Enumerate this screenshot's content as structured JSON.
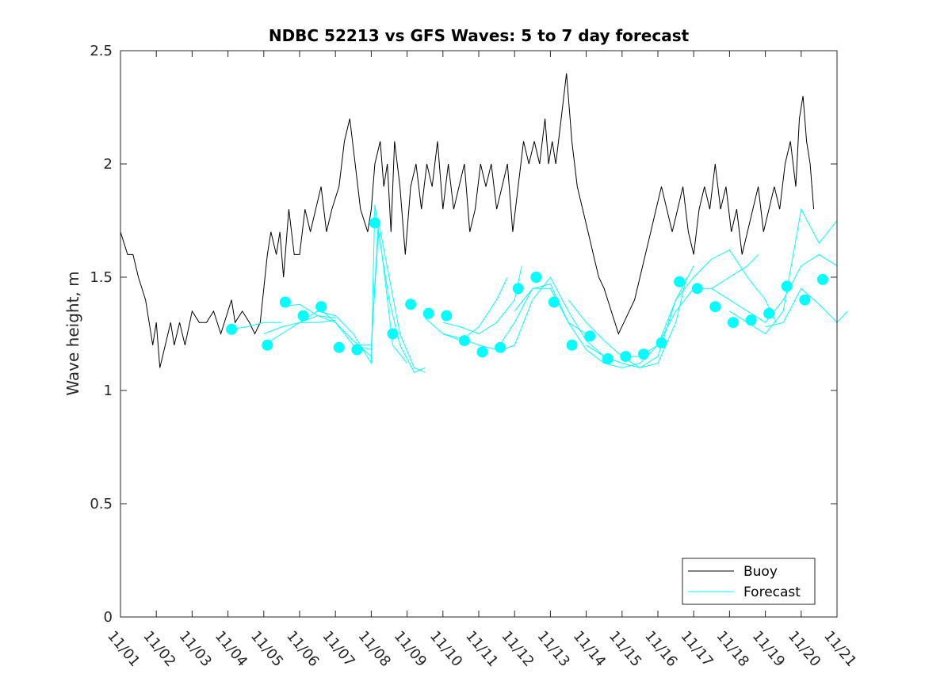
{
  "chart_data": {
    "type": "line",
    "title": "NDBC 52213 vs GFS Waves: 5 to 7 day forecast",
    "xlabel": "",
    "ylabel": "Wave height, m",
    "ylim": [
      0,
      2.5
    ],
    "xlim": [
      0,
      20
    ],
    "yticks": [
      0,
      0.5,
      1,
      1.5,
      2,
      2.5
    ],
    "ytick_labels": [
      "0",
      "0.5",
      "1",
      "1.5",
      "2",
      "2.5"
    ],
    "xticks": [
      0,
      1,
      2,
      3,
      4,
      5,
      6,
      7,
      8,
      9,
      10,
      11,
      12,
      13,
      14,
      15,
      16,
      17,
      18,
      19,
      20
    ],
    "xtick_labels": [
      "11/01",
      "11/02",
      "11/03",
      "11/04",
      "11/05",
      "11/06",
      "11/07",
      "11/08",
      "11/09",
      "11/10",
      "11/11",
      "11/12",
      "11/13",
      "11/14",
      "11/15",
      "11/16",
      "11/17",
      "11/18",
      "11/19",
      "11/20",
      "11/21"
    ],
    "legend": {
      "placement": "bottom-right",
      "entries": [
        "Buoy",
        "Forecast"
      ]
    },
    "colors": {
      "buoy": "#000000",
      "forecast": "#00ffff",
      "axis": "#262626"
    },
    "series": [
      {
        "name": "Buoy",
        "x": [
          0,
          0.2,
          0.35,
          0.5,
          0.7,
          0.8,
          0.9,
          1.0,
          1.1,
          1.25,
          1.4,
          1.5,
          1.65,
          1.8,
          2.0,
          2.2,
          2.4,
          2.6,
          2.8,
          3.0,
          3.1,
          3.2,
          3.4,
          3.6,
          3.75,
          3.9,
          4.1,
          4.2,
          4.35,
          4.45,
          4.55,
          4.7,
          4.85,
          5.0,
          5.15,
          5.3,
          5.45,
          5.6,
          5.75,
          5.9,
          6.1,
          6.25,
          6.4,
          6.55,
          6.7,
          6.9,
          7.0,
          7.1,
          7.25,
          7.35,
          7.45,
          7.55,
          7.65,
          7.8,
          7.95,
          8.1,
          8.25,
          8.4,
          8.55,
          8.7,
          8.85,
          9.0,
          9.15,
          9.3,
          9.45,
          9.6,
          9.75,
          9.9,
          10.05,
          10.2,
          10.35,
          10.5,
          10.65,
          10.8,
          10.95,
          11.1,
          11.25,
          11.4,
          11.55,
          11.7,
          11.85,
          11.95,
          12.05,
          12.15,
          12.3,
          12.45,
          12.6,
          12.75,
          12.9,
          13.05,
          13.2,
          13.35,
          13.5,
          13.6,
          13.7,
          13.8,
          13.9,
          14.05,
          14.2,
          14.35,
          14.5,
          14.65,
          14.8,
          14.95,
          15.1,
          15.25,
          15.4,
          15.55,
          15.7,
          15.85,
          16.0,
          16.15,
          16.3,
          16.45,
          16.6,
          16.75,
          16.9,
          17.05,
          17.2,
          17.35,
          17.5,
          17.65,
          17.8,
          17.95,
          18.1,
          18.25,
          18.4,
          18.55,
          18.7,
          18.85,
          18.95,
          19.05,
          19.15,
          19.25,
          19.35
        ],
        "y": [
          1.7,
          1.6,
          1.6,
          1.5,
          1.4,
          1.3,
          1.2,
          1.3,
          1.1,
          1.2,
          1.3,
          1.2,
          1.3,
          1.2,
          1.35,
          1.3,
          1.3,
          1.35,
          1.25,
          1.35,
          1.4,
          1.3,
          1.35,
          1.3,
          1.25,
          1.3,
          1.6,
          1.7,
          1.6,
          1.7,
          1.5,
          1.8,
          1.6,
          1.6,
          1.8,
          1.7,
          1.8,
          1.9,
          1.7,
          1.8,
          1.9,
          2.1,
          2.2,
          2.0,
          1.8,
          1.7,
          1.8,
          2.0,
          2.1,
          1.9,
          2.0,
          1.7,
          2.1,
          1.9,
          1.6,
          1.9,
          2.0,
          1.8,
          2.0,
          1.9,
          2.1,
          1.8,
          2.0,
          1.8,
          1.9,
          2.0,
          1.7,
          1.8,
          2.0,
          1.9,
          2.0,
          1.8,
          1.9,
          2.0,
          1.7,
          1.9,
          2.1,
          2.0,
          2.1,
          2.0,
          2.2,
          2.0,
          2.1,
          2.0,
          2.2,
          2.4,
          2.1,
          1.9,
          1.8,
          1.7,
          1.6,
          1.5,
          1.45,
          1.4,
          1.35,
          1.3,
          1.25,
          1.3,
          1.35,
          1.4,
          1.5,
          1.6,
          1.7,
          1.8,
          1.9,
          1.8,
          1.7,
          1.8,
          1.9,
          1.7,
          1.6,
          1.8,
          1.9,
          1.8,
          2.0,
          1.8,
          1.9,
          1.7,
          1.8,
          1.6,
          1.7,
          1.8,
          1.9,
          1.7,
          1.8,
          1.9,
          1.8,
          2.0,
          2.1,
          1.9,
          2.2,
          2.3,
          2.1,
          2.0,
          1.8
        ]
      },
      {
        "name": "Forecast",
        "forecast_runs": [
          [
            [
              3.0,
              1.27
            ],
            [
              3.5,
              1.28
            ],
            [
              4.0,
              1.3
            ],
            [
              4.5,
              1.3
            ]
          ],
          [
            [
              4.0,
              1.25
            ],
            [
              4.5,
              1.28
            ],
            [
              5.0,
              1.3
            ],
            [
              5.5,
              1.3
            ],
            [
              6.0,
              1.31
            ]
          ],
          [
            [
              4.0,
              1.2
            ],
            [
              4.5,
              1.25
            ],
            [
              5.0,
              1.3
            ],
            [
              5.5,
              1.33
            ],
            [
              6.0,
              1.32
            ]
          ],
          [
            [
              4.5,
              1.37
            ],
            [
              5.0,
              1.38
            ],
            [
              5.5,
              1.33
            ],
            [
              6.0,
              1.3
            ],
            [
              6.5,
              1.22
            ],
            [
              7.0,
              1.15
            ]
          ],
          [
            [
              5.0,
              1.3
            ],
            [
              5.5,
              1.35
            ],
            [
              6.0,
              1.33
            ],
            [
              6.5,
              1.25
            ],
            [
              7.0,
              1.12
            ],
            [
              7.1,
              1.82
            ],
            [
              7.3,
              1.6
            ],
            [
              7.6,
              1.2
            ],
            [
              8.0,
              1.12
            ]
          ],
          [
            [
              5.5,
              1.37
            ],
            [
              6.0,
              1.3
            ],
            [
              6.5,
              1.2
            ],
            [
              7.0,
              1.2
            ],
            [
              7.2,
              1.7
            ],
            [
              7.5,
              1.4
            ],
            [
              7.8,
              1.2
            ],
            [
              8.2,
              1.08
            ],
            [
              8.5,
              1.1
            ]
          ],
          [
            [
              6.5,
              1.2
            ],
            [
              7.0,
              1.18
            ],
            [
              7.2,
              1.75
            ],
            [
              7.5,
              1.5
            ],
            [
              7.8,
              1.25
            ],
            [
              8.2,
              1.1
            ],
            [
              8.5,
              1.08
            ]
          ],
          [
            [
              8.5,
              1.32
            ],
            [
              9.0,
              1.25
            ],
            [
              9.5,
              1.22
            ],
            [
              10.0,
              1.28
            ],
            [
              10.5,
              1.4
            ],
            [
              10.8,
              1.5
            ]
          ],
          [
            [
              9.0,
              1.3
            ],
            [
              9.5,
              1.28
            ],
            [
              10.0,
              1.25
            ],
            [
              10.5,
              1.3
            ],
            [
              11.0,
              1.4
            ],
            [
              11.2,
              1.55
            ]
          ],
          [
            [
              9.0,
              1.25
            ],
            [
              9.5,
              1.23
            ],
            [
              10.0,
              1.2
            ],
            [
              10.5,
              1.18
            ],
            [
              11.0,
              1.3
            ],
            [
              11.5,
              1.45
            ],
            [
              12.0,
              1.45
            ],
            [
              12.5,
              1.3
            ],
            [
              13.0,
              1.25
            ]
          ],
          [
            [
              10.5,
              1.17
            ],
            [
              11.0,
              1.2
            ],
            [
              11.5,
              1.4
            ],
            [
              12.0,
              1.5
            ],
            [
              12.5,
              1.35
            ],
            [
              13.0,
              1.22
            ],
            [
              13.5,
              1.15
            ],
            [
              14.0,
              1.12
            ]
          ],
          [
            [
              11.0,
              1.35
            ],
            [
              11.5,
              1.45
            ],
            [
              12.0,
              1.47
            ],
            [
              12.5,
              1.3
            ],
            [
              13.0,
              1.18
            ],
            [
              13.5,
              1.12
            ],
            [
              14.0,
              1.1
            ],
            [
              14.5,
              1.12
            ],
            [
              15.0,
              1.2
            ]
          ],
          [
            [
              12.5,
              1.4
            ],
            [
              13.0,
              1.3
            ],
            [
              13.5,
              1.22
            ],
            [
              14.0,
              1.15
            ],
            [
              14.5,
              1.1
            ],
            [
              15.0,
              1.12
            ],
            [
              15.5,
              1.3
            ],
            [
              15.8,
              1.5
            ]
          ],
          [
            [
              13.0,
              1.2
            ],
            [
              13.5,
              1.15
            ],
            [
              14.0,
              1.12
            ],
            [
              14.5,
              1.1
            ],
            [
              15.0,
              1.15
            ],
            [
              15.5,
              1.4
            ],
            [
              16.0,
              1.55
            ]
          ],
          [
            [
              14.0,
              1.15
            ],
            [
              14.5,
              1.15
            ],
            [
              15.0,
              1.2
            ],
            [
              15.5,
              1.35
            ],
            [
              16.0,
              1.45
            ],
            [
              16.5,
              1.45
            ],
            [
              17.0,
              1.5
            ],
            [
              17.5,
              1.55
            ],
            [
              17.8,
              1.6
            ]
          ],
          [
            [
              15.0,
              1.2
            ],
            [
              15.5,
              1.4
            ],
            [
              16.0,
              1.5
            ],
            [
              16.5,
              1.58
            ],
            [
              17.0,
              1.62
            ],
            [
              17.5,
              1.5
            ],
            [
              18.0,
              1.4
            ],
            [
              18.3,
              1.3
            ]
          ],
          [
            [
              16.5,
              1.45
            ],
            [
              17.0,
              1.4
            ],
            [
              17.5,
              1.35
            ],
            [
              18.0,
              1.3
            ],
            [
              18.5,
              1.4
            ],
            [
              19.0,
              1.55
            ],
            [
              19.5,
              1.6
            ],
            [
              20.0,
              1.55
            ]
          ],
          [
            [
              17.0,
              1.35
            ],
            [
              17.5,
              1.3
            ],
            [
              18.0,
              1.25
            ],
            [
              18.5,
              1.35
            ],
            [
              19.0,
              1.8
            ],
            [
              19.5,
              1.65
            ],
            [
              20.0,
              1.75
            ]
          ],
          [
            [
              18.0,
              1.28
            ],
            [
              18.5,
              1.3
            ],
            [
              19.0,
              1.45
            ],
            [
              19.5,
              1.38
            ],
            [
              20.0,
              1.3
            ],
            [
              20.3,
              1.35
            ]
          ]
        ],
        "markers": [
          {
            "x": 3.1,
            "y": 1.27
          },
          {
            "x": 4.1,
            "y": 1.2
          },
          {
            "x": 4.6,
            "y": 1.39
          },
          {
            "x": 5.1,
            "y": 1.33
          },
          {
            "x": 5.6,
            "y": 1.37
          },
          {
            "x": 6.1,
            "y": 1.19
          },
          {
            "x": 6.6,
            "y": 1.18
          },
          {
            "x": 7.1,
            "y": 1.74
          },
          {
            "x": 7.6,
            "y": 1.25
          },
          {
            "x": 8.1,
            "y": 1.38
          },
          {
            "x": 8.6,
            "y": 1.34
          },
          {
            "x": 9.1,
            "y": 1.33
          },
          {
            "x": 9.6,
            "y": 1.22
          },
          {
            "x": 10.1,
            "y": 1.17
          },
          {
            "x": 10.6,
            "y": 1.19
          },
          {
            "x": 11.1,
            "y": 1.45
          },
          {
            "x": 11.6,
            "y": 1.5
          },
          {
            "x": 12.1,
            "y": 1.39
          },
          {
            "x": 12.6,
            "y": 1.2
          },
          {
            "x": 13.1,
            "y": 1.24
          },
          {
            "x": 13.6,
            "y": 1.14
          },
          {
            "x": 14.1,
            "y": 1.15
          },
          {
            "x": 14.6,
            "y": 1.16
          },
          {
            "x": 15.1,
            "y": 1.21
          },
          {
            "x": 15.6,
            "y": 1.48
          },
          {
            "x": 16.1,
            "y": 1.45
          },
          {
            "x": 16.6,
            "y": 1.37
          },
          {
            "x": 17.1,
            "y": 1.3
          },
          {
            "x": 17.6,
            "y": 1.31
          },
          {
            "x": 18.1,
            "y": 1.34
          },
          {
            "x": 18.6,
            "y": 1.46
          },
          {
            "x": 19.1,
            "y": 1.4
          },
          {
            "x": 19.6,
            "y": 1.49
          }
        ]
      }
    ]
  }
}
